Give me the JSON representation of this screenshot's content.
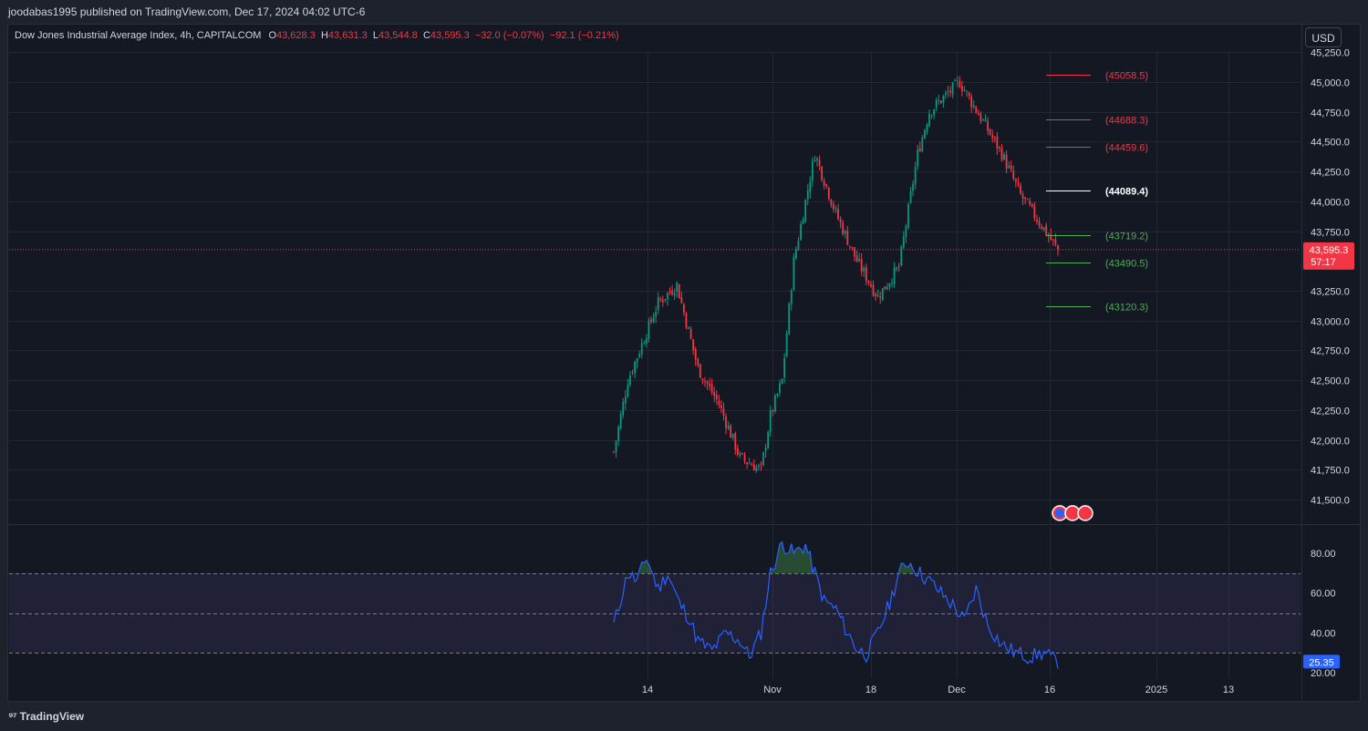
{
  "publisher": "joodabas1995 published on TradingView.com, Dec 17, 2024 04:02 UTC-6",
  "legend": {
    "symbol": "Dow Jones Industrial Average Index, 4h, CAPITALCOM",
    "open_label": "O",
    "open": "43,628.3",
    "high_label": "H",
    "high": "43,631.3",
    "low_label": "L",
    "low": "43,544.8",
    "close_label": "C",
    "close": "43,595.3",
    "change": "−32.0 (−0.07%)",
    "change2": "−92.1 (−0.21%)"
  },
  "currency_button": "USD",
  "price_axis": [
    "45,250.0",
    "45,000.0",
    "44,750.0",
    "44,500.0",
    "44,250.0",
    "44,000.0",
    "43,750.0",
    "43,250.0",
    "43,000.0",
    "42,750.0",
    "42,500.0",
    "42,250.0",
    "42,000.0",
    "41,750.0",
    "41,500.0"
  ],
  "price_axis_values": [
    45250,
    45000,
    44750,
    44500,
    44250,
    44000,
    43750,
    43250,
    43000,
    42750,
    42500,
    42250,
    42000,
    41750,
    41500
  ],
  "current_price": {
    "label": "43,595.3",
    "value": 43595.3,
    "countdown": "57:17",
    "color": "#f23645"
  },
  "levels": [
    {
      "label": "(45058.5)",
      "value": 45058.5,
      "color": "#f23645"
    },
    {
      "label": "(44688.3)",
      "value": 44688.3,
      "color": "#f23645"
    },
    {
      "label": "(44459.6)",
      "value": 44459.6,
      "color": "#f23645"
    },
    {
      "label": "(44089.4)",
      "value": 44089.4,
      "color": "#ffffff"
    },
    {
      "label": "(43719.2)",
      "value": 43719.2,
      "color": "#4caf50"
    },
    {
      "label": "(43490.5)",
      "value": 43490.5,
      "color": "#4caf50"
    },
    {
      "label": "(43120.3)",
      "value": 43120.3,
      "color": "#4caf50"
    }
  ],
  "time_axis": [
    "14",
    "Nov",
    "18",
    "Dec",
    "16",
    "2025",
    "13"
  ],
  "rsi": {
    "axis": [
      "80.00",
      "60.00",
      "40.00",
      "20.00"
    ],
    "axis_values": [
      80,
      60,
      40,
      20
    ],
    "upper_band": 70,
    "mid_band": 50,
    "lower_band": 30,
    "current_label": "25.35",
    "current": 25.35,
    "line_color": "#2962ff"
  },
  "colors": {
    "up": "#089981",
    "down": "#f23645",
    "bg": "#141823",
    "grid": "#232733"
  },
  "chart_data": {
    "type": "candlestick",
    "ylim": [
      41400,
      45300
    ],
    "anchors": [
      [
        0,
        41900
      ],
      [
        6,
        42500
      ],
      [
        14,
        42900
      ],
      [
        19,
        43150
      ],
      [
        27,
        43300
      ],
      [
        36,
        42600
      ],
      [
        45,
        42300
      ],
      [
        54,
        41850
      ],
      [
        63,
        41750
      ],
      [
        67,
        42200
      ],
      [
        72,
        42500
      ],
      [
        77,
        43500
      ],
      [
        86,
        44400
      ],
      [
        95,
        43900
      ],
      [
        104,
        43500
      ],
      [
        113,
        43200
      ],
      [
        122,
        43450
      ],
      [
        130,
        44400
      ],
      [
        135,
        44750
      ],
      [
        140,
        44850
      ],
      [
        148,
        45000
      ],
      [
        157,
        44700
      ],
      [
        166,
        44400
      ],
      [
        174,
        44050
      ],
      [
        183,
        43800
      ],
      [
        190,
        43590
      ]
    ],
    "rsi_anchors": [
      [
        0,
        44
      ],
      [
        6,
        70
      ],
      [
        10,
        66
      ],
      [
        14,
        78
      ],
      [
        19,
        62
      ],
      [
        23,
        70
      ],
      [
        28,
        55
      ],
      [
        32,
        48
      ],
      [
        36,
        36
      ],
      [
        42,
        31
      ],
      [
        48,
        40
      ],
      [
        54,
        36
      ],
      [
        58,
        28
      ],
      [
        63,
        40
      ],
      [
        67,
        70
      ],
      [
        72,
        85
      ],
      [
        77,
        80
      ],
      [
        82,
        84
      ],
      [
        86,
        70
      ],
      [
        90,
        56
      ],
      [
        95,
        52
      ],
      [
        100,
        40
      ],
      [
        104,
        32
      ],
      [
        108,
        29
      ],
      [
        113,
        40
      ],
      [
        118,
        55
      ],
      [
        122,
        70
      ],
      [
        126,
        76
      ],
      [
        131,
        70
      ],
      [
        136,
        65
      ],
      [
        140,
        60
      ],
      [
        145,
        54
      ],
      [
        150,
        46
      ],
      [
        155,
        62
      ],
      [
        160,
        44
      ],
      [
        166,
        34
      ],
      [
        172,
        30
      ],
      [
        178,
        28
      ],
      [
        184,
        30
      ],
      [
        190,
        25
      ]
    ]
  }
}
